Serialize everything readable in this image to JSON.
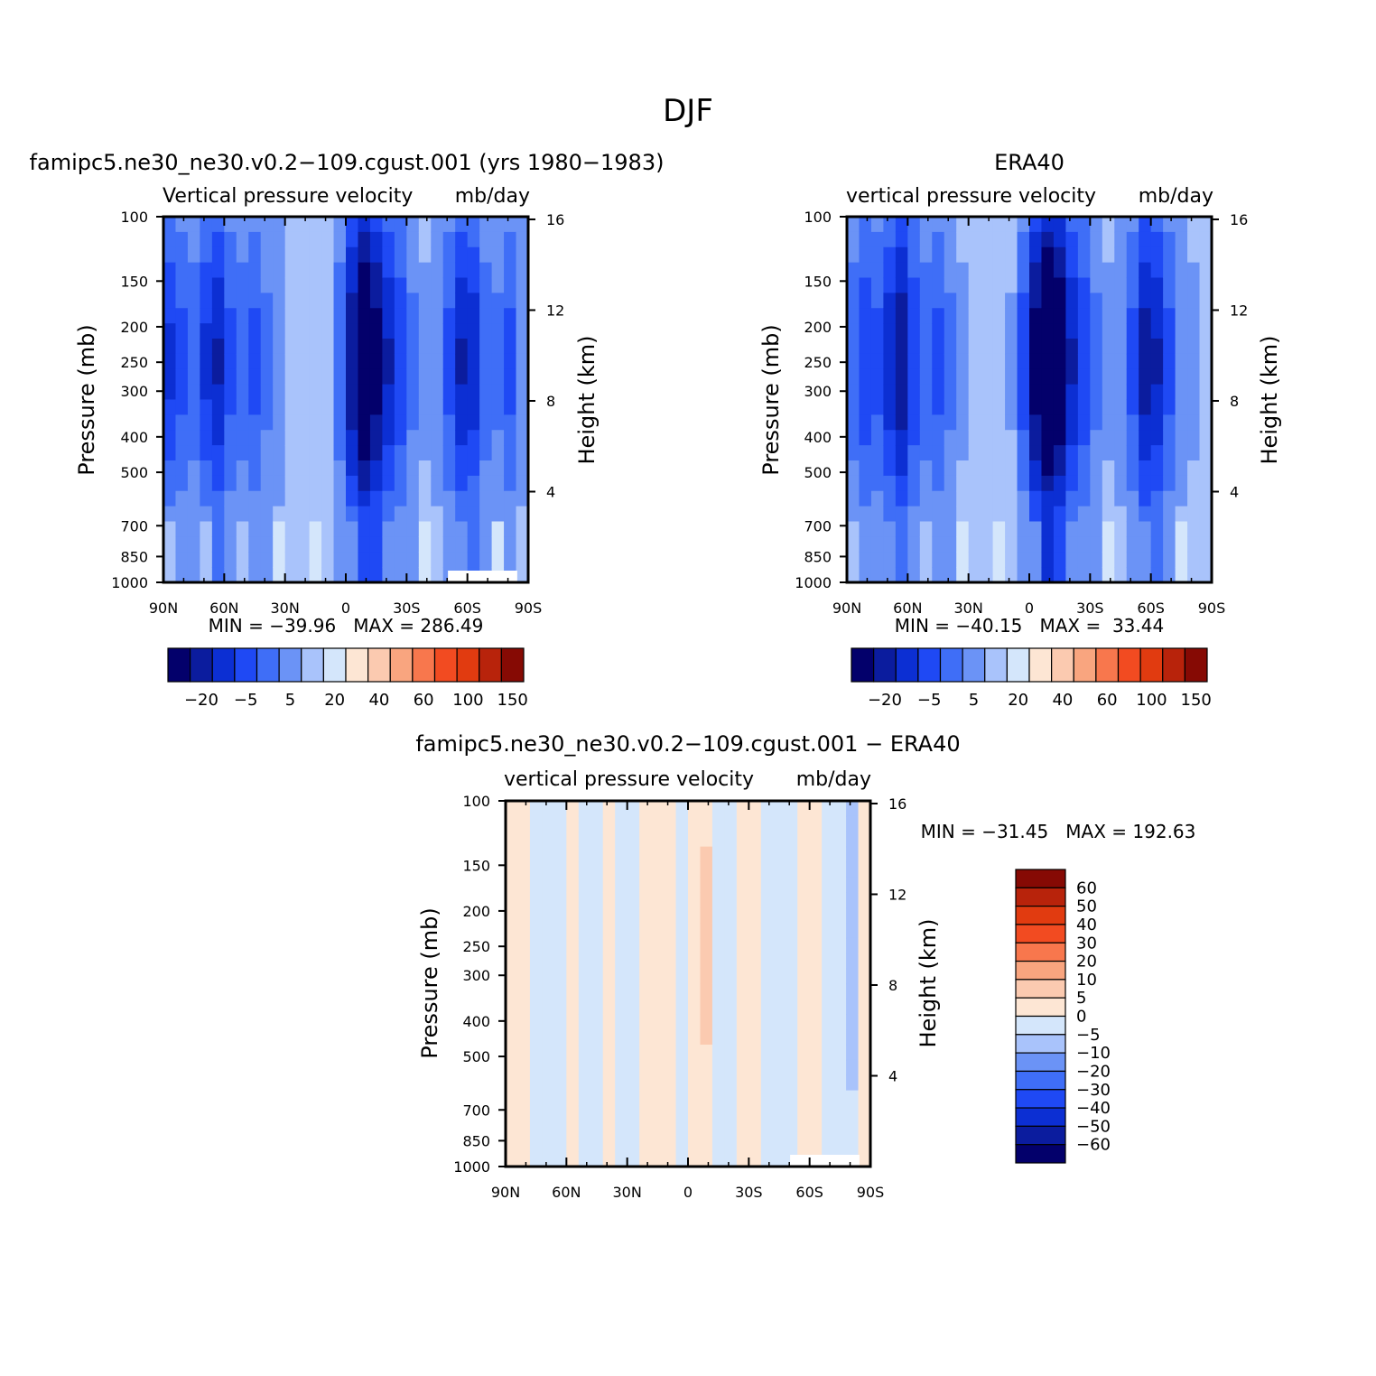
{
  "figure_title": "DJF",
  "chart_data": [
    {
      "type": "heatmap",
      "id": "model",
      "case_title": "famipc5.ne30_ne30.v0.2−109.cgust.001 (yrs 1980−1983)",
      "variable_label": "Vertical pressure velocity",
      "units": "mb/day",
      "ylabel": "Pressure (mb)",
      "ylabel_right": "Height (km)",
      "x_ticks": [
        "90N",
        "60N",
        "30N",
        "0",
        "30S",
        "60S",
        "90S"
      ],
      "xlim": [
        90,
        -90
      ],
      "y_ticks": [
        100,
        150,
        200,
        250,
        300,
        400,
        500,
        700,
        850,
        1000
      ],
      "ylim": [
        100,
        1000
      ],
      "y_scale": "log",
      "height_ticks": [
        4,
        8,
        12,
        16
      ],
      "stats": "MIN = −39.96   MAX = 286.49",
      "colorbar_orientation": "horizontal",
      "colorbar_labels": [
        "−20",
        "−5",
        "5",
        "20",
        "40",
        "60",
        "100",
        "150"
      ],
      "approx_mean_profile": [
        -18,
        -14,
        -12,
        -18,
        -22,
        -14,
        -12,
        -14,
        -10,
        -8,
        -4,
        -2,
        -2,
        -4,
        -12,
        -25,
        -35,
        -28,
        -22,
        -16,
        -10,
        -6,
        -8,
        -14,
        -22,
        -20,
        -12,
        -10,
        -14,
        -8
      ],
      "missing_region_below": "bottom-right (60S–90S, near 1000 mb)"
    },
    {
      "type": "heatmap",
      "id": "obs",
      "case_title": "ERA40",
      "variable_label": "vertical pressure velocity",
      "units": "mb/day",
      "ylabel": "Pressure (mb)",
      "ylabel_right": "Height (km)",
      "x_ticks": [
        "90N",
        "60N",
        "30N",
        "0",
        "30S",
        "60S",
        "90S"
      ],
      "xlim": [
        90,
        -90
      ],
      "y_ticks": [
        100,
        150,
        200,
        250,
        300,
        400,
        500,
        700,
        850,
        1000
      ],
      "ylim": [
        100,
        1000
      ],
      "y_scale": "log",
      "height_ticks": [
        4,
        8,
        12,
        16
      ],
      "stats": "MIN = −40.15   MAX =  33.44",
      "colorbar_orientation": "horizontal",
      "colorbar_labels": [
        "−20",
        "−5",
        "5",
        "20",
        "40",
        "60",
        "100",
        "150"
      ],
      "approx_mean_profile": [
        -12,
        -16,
        -14,
        -20,
        -25,
        -16,
        -12,
        -14,
        -10,
        -6,
        -2,
        -1,
        -2,
        -5,
        -15,
        -28,
        -38,
        -32,
        -22,
        -16,
        -10,
        -6,
        -8,
        -14,
        -24,
        -22,
        -14,
        -8,
        -6,
        -4
      ]
    },
    {
      "type": "heatmap",
      "id": "diff",
      "case_title": "famipc5.ne30_ne30.v0.2−109.cgust.001 − ERA40",
      "variable_label": "vertical pressure velocity",
      "units": "mb/day",
      "ylabel": "Pressure (mb)",
      "ylabel_right": "Height (km)",
      "x_ticks": [
        "90N",
        "60N",
        "30N",
        "0",
        "30S",
        "60S",
        "90S"
      ],
      "xlim": [
        90,
        -90
      ],
      "y_ticks": [
        100,
        150,
        200,
        250,
        300,
        400,
        500,
        700,
        850,
        1000
      ],
      "ylim": [
        100,
        1000
      ],
      "y_scale": "log",
      "height_ticks": [
        4,
        8,
        12,
        16
      ],
      "stats": "MIN = −31.45   MAX = 192.63",
      "colorbar_orientation": "vertical",
      "colorbar_labels": [
        "60",
        "50",
        "40",
        "30",
        "20",
        "10",
        "5",
        "0",
        "−5",
        "−10",
        "−20",
        "−30",
        "−40",
        "−50",
        "−60"
      ],
      "approx_mean_profile": [
        2,
        3,
        -2,
        -2,
        -3,
        2,
        -2,
        -2,
        2,
        -3,
        -2,
        1,
        2,
        1,
        -2,
        3,
        6,
        -2,
        -2,
        2,
        2,
        -2,
        -2,
        -2,
        3,
        2,
        -3,
        -4,
        -8,
        2
      ]
    }
  ],
  "palettes": {
    "full": [
      "#03006b",
      "#0b1c9e",
      "#0c2fd3",
      "#1f49f4",
      "#3f6ef7",
      "#6b93f6",
      "#a9c3fb",
      "#d4e6fb",
      "#fde6d4",
      "#fbcab0",
      "#f9a57f",
      "#f8774d",
      "#f24b21",
      "#e13b10",
      "#b8230b",
      "#860a04"
    ],
    "diff": [
      "#03006b",
      "#0b1c9e",
      "#0c2fd3",
      "#1f49f4",
      "#3f6ef7",
      "#6b93f6",
      "#a9c3fb",
      "#d4e6fb",
      "#fde6d4",
      "#fbcab0",
      "#f9a57f",
      "#f8774d",
      "#f24b21",
      "#e13b10",
      "#b8230b",
      "#860a04"
    ]
  }
}
